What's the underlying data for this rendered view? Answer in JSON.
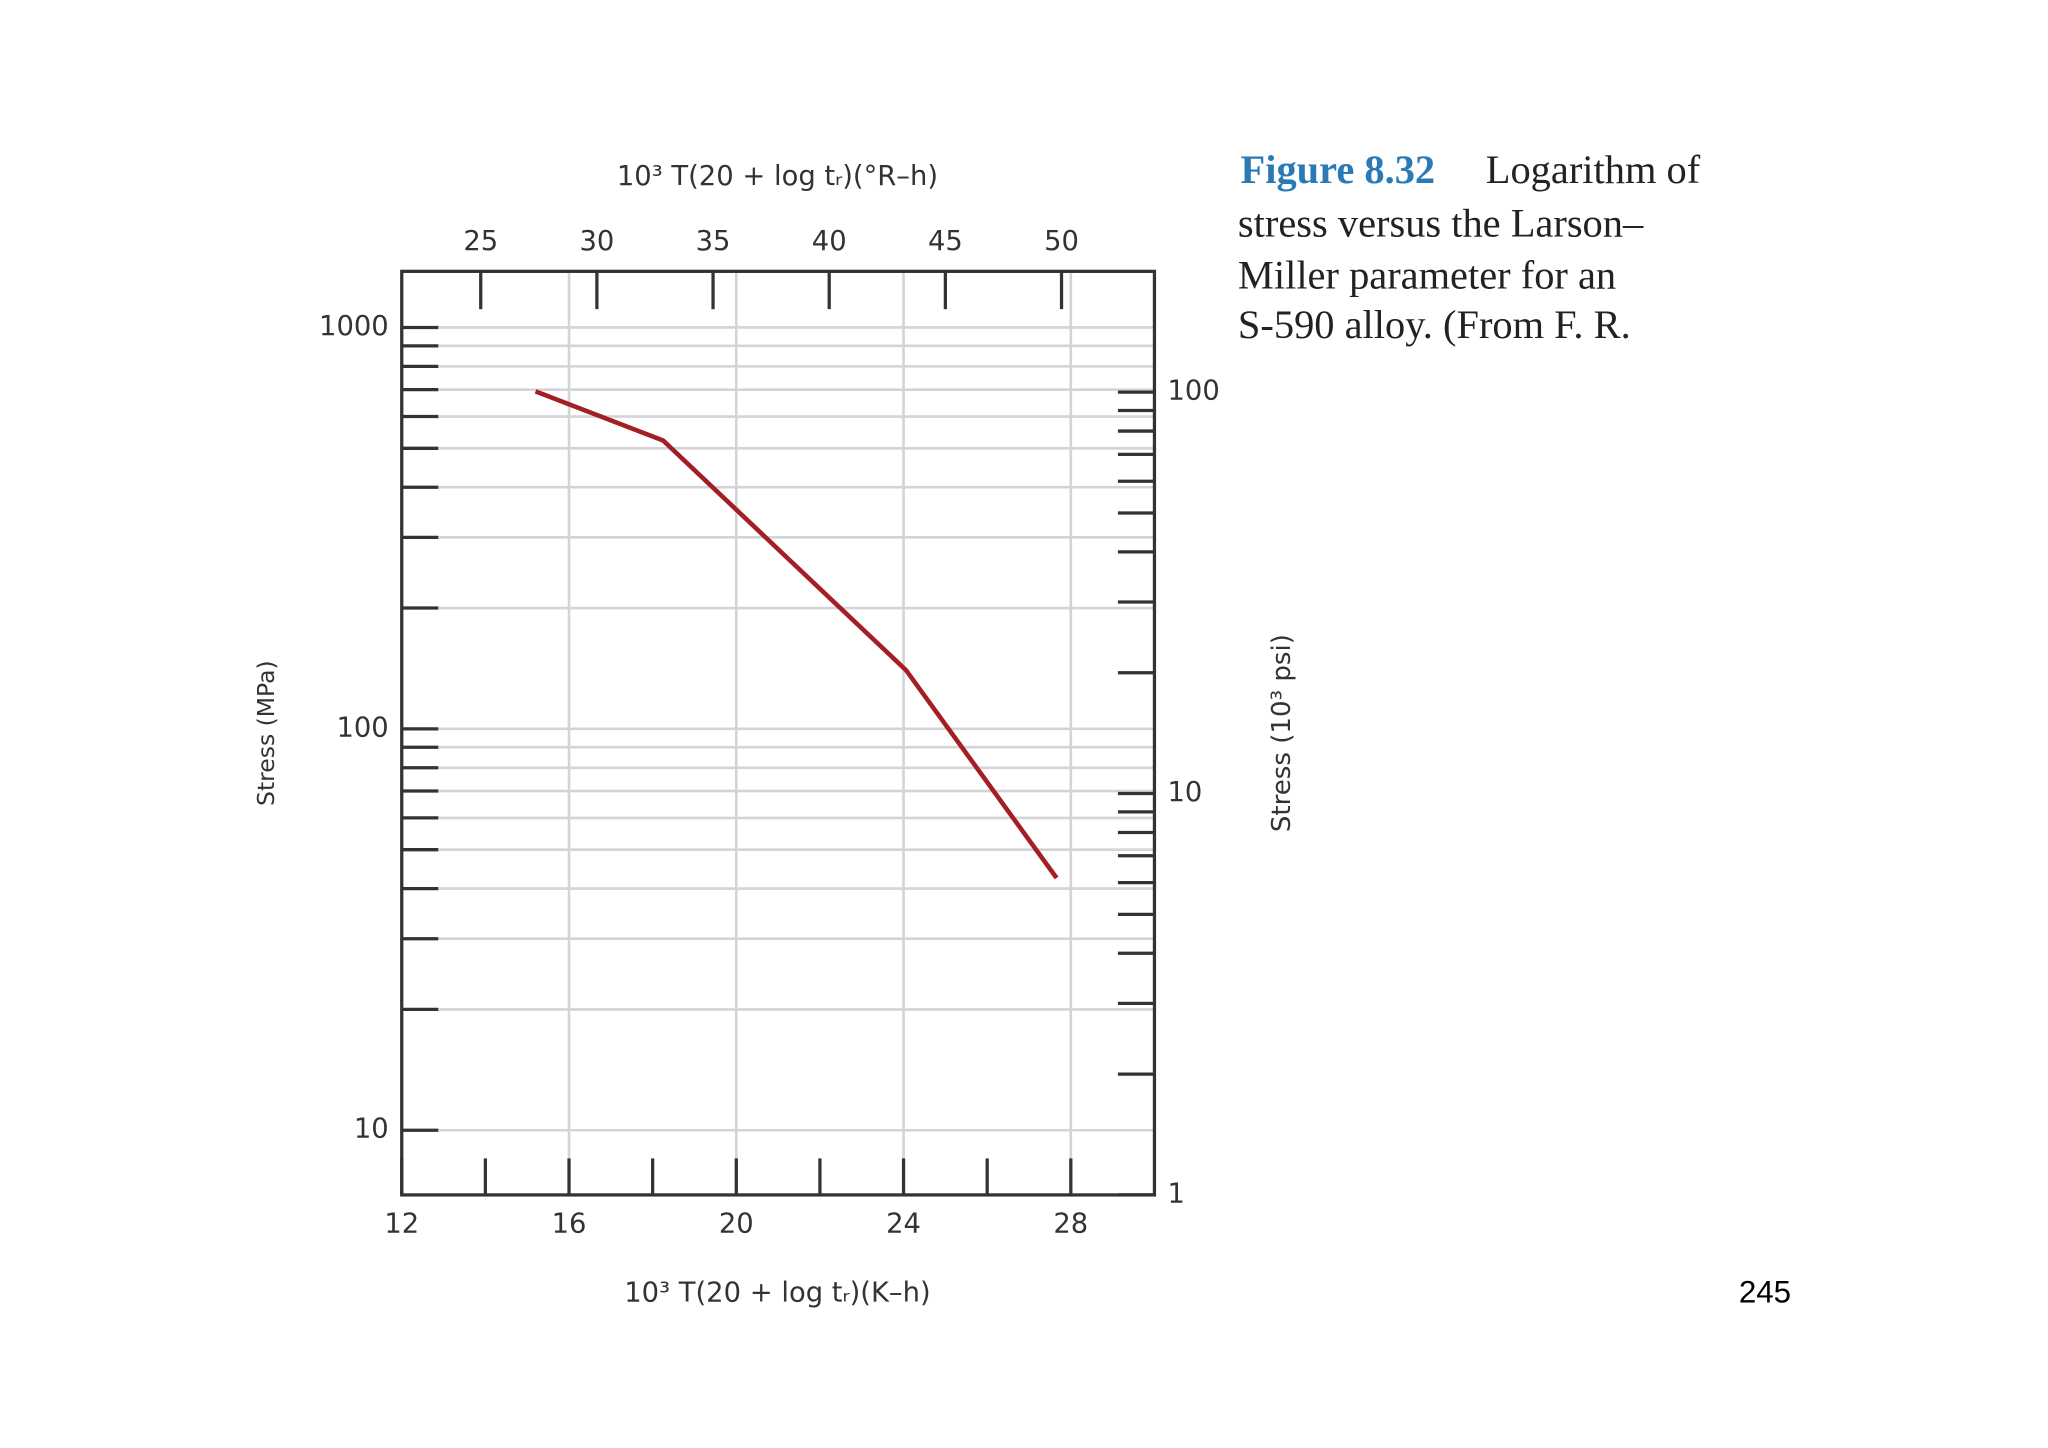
{
  "chart_data": {
    "type": "line",
    "x_label": "10³ T(20 + log tᵣ)(K–h)",
    "x2_label": "10³ T(20 + log tᵣ)(°R–h)",
    "y_label": "Stress (MPa)",
    "y2_label": "Stress (10³ psi)",
    "xlim": [
      12,
      30
    ],
    "xticks": [
      12,
      16,
      20,
      24,
      28
    ],
    "xminorticks": [
      14,
      18,
      22,
      26
    ],
    "x2lim": [
      21.6,
      54
    ],
    "x2ticks": [
      25,
      30,
      35,
      40,
      45,
      50
    ],
    "ylim": [
      6.9,
      1380
    ],
    "yticks": [
      10,
      100,
      1000
    ],
    "yminorticks": [
      20,
      30,
      40,
      50,
      60,
      70,
      80,
      90,
      200,
      300,
      400,
      500,
      600,
      700,
      800,
      900
    ],
    "y2lim": [
      1,
      200
    ],
    "y2ticks": [
      1,
      10,
      100
    ],
    "y2minorticks": [
      2,
      3,
      4,
      5,
      6,
      7,
      8,
      9,
      20,
      30,
      40,
      50,
      60,
      70,
      80,
      90
    ],
    "log_y": true,
    "grid": true,
    "series": [
      {
        "color": "#a31f24",
        "x": [
          15.2,
          18.25,
          24.06,
          27.66
        ],
        "values": [
          693,
          523,
          140,
          42.5
        ]
      }
    ]
  },
  "caption": {
    "label": "Figure 8.32",
    "lines": [
      "Logarithm of",
      "stress versus the Larson–",
      "Miller parameter for an",
      "S-590 alloy. (From F. R."
    ]
  },
  "page_number": "245"
}
